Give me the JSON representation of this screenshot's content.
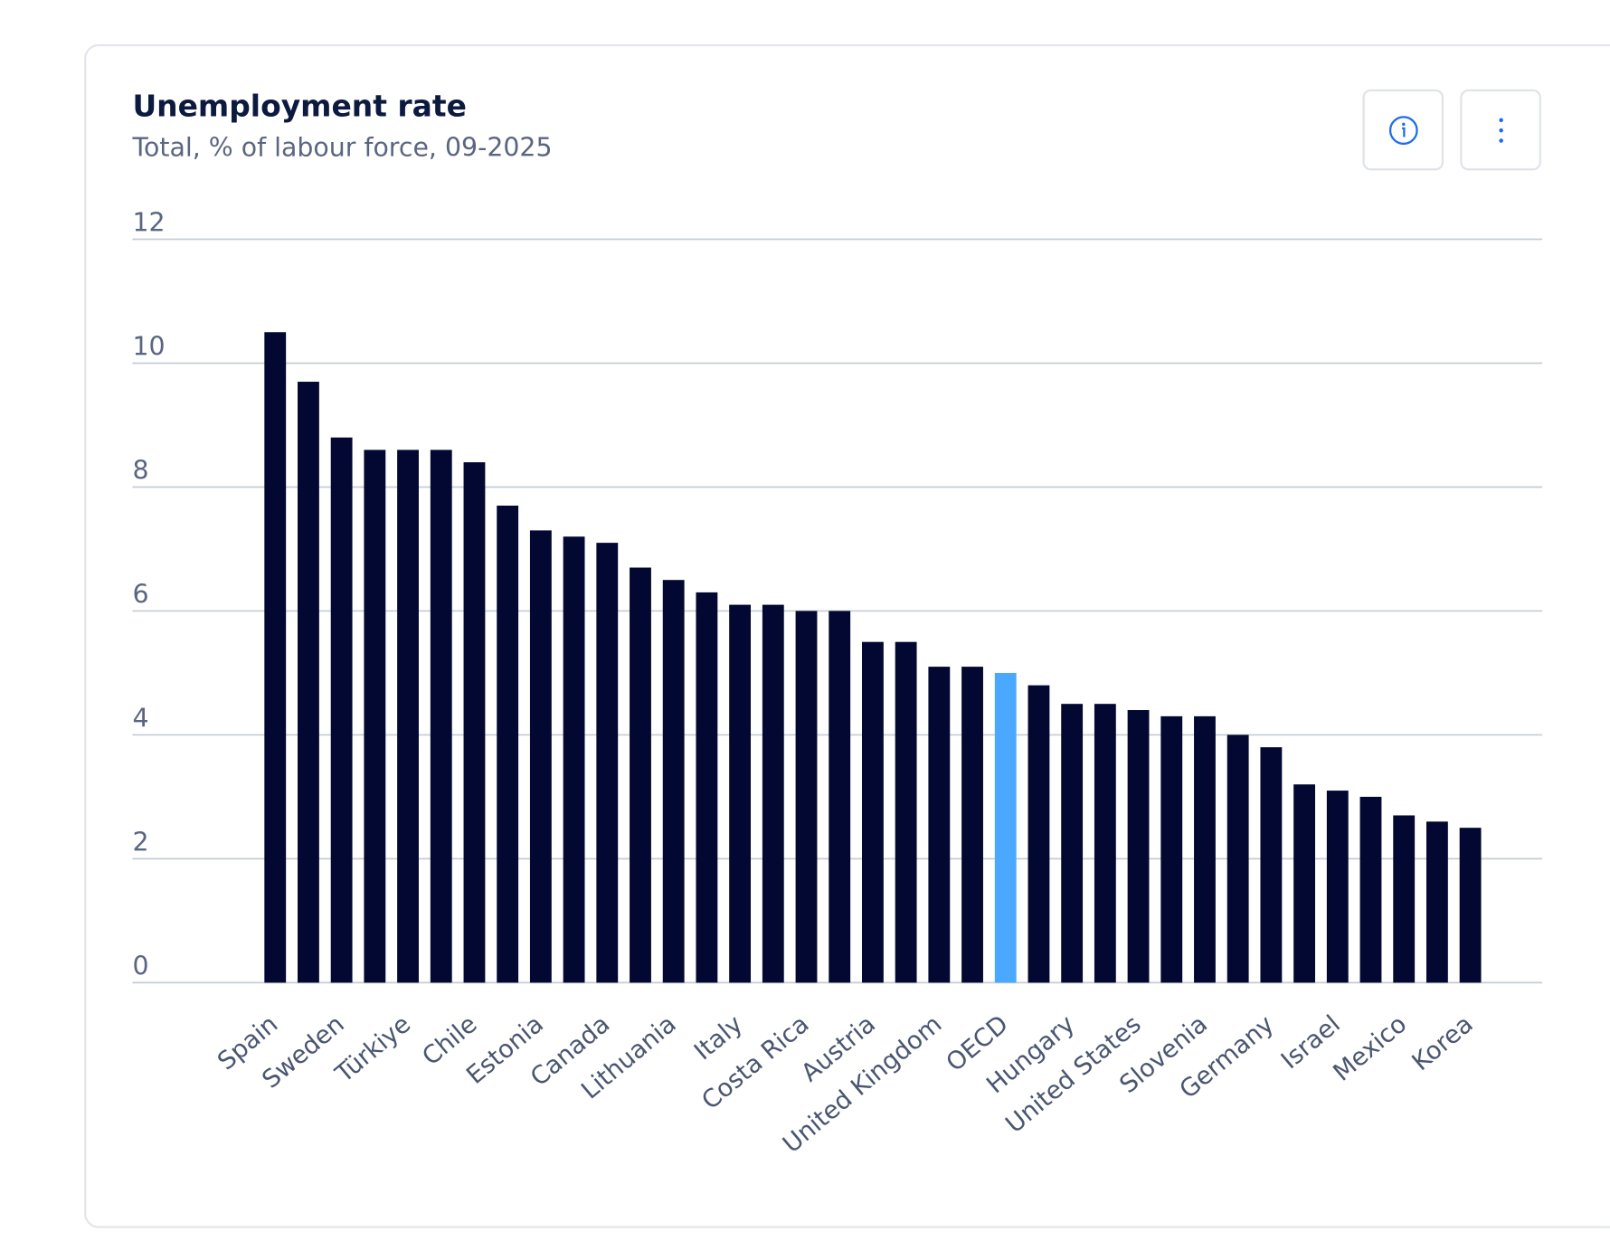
{
  "header": {
    "title": "Unemployment rate",
    "subtitle": "Total, % of labour force, 09-2025"
  },
  "buttons": {
    "info_icon": "info-circle-icon",
    "menu_icon": "more-vertical-icon"
  },
  "colors": {
    "bar": "#020831",
    "highlight": "#4aa8ff",
    "grid": "#c5ccd6",
    "accent": "#1f6bf0"
  },
  "chart_data": {
    "type": "bar",
    "title": "Unemployment rate",
    "subtitle": "Total, % of labour force, 09-2025",
    "xlabel": "",
    "ylabel": "",
    "ylim": [
      0,
      12
    ],
    "yticks": [
      0,
      2,
      4,
      6,
      8,
      10,
      12
    ],
    "grid": true,
    "highlight": "OECD",
    "categories": [
      "Spain",
      "",
      "Sweden",
      "",
      "Türkiye",
      "",
      "Chile",
      "",
      "Estonia",
      "",
      "Canada",
      "",
      "Lithuania",
      "",
      "Italy",
      "",
      "Costa Rica",
      "",
      "Austria",
      "",
      "United Kingdom",
      "",
      "OECD",
      "",
      "Hungary",
      "",
      "United States",
      "",
      "Slovenia",
      "",
      "Germany",
      "",
      "Israel",
      "",
      "Mexico",
      "",
      "Korea"
    ],
    "values": [
      10.5,
      9.7,
      8.8,
      8.6,
      8.6,
      8.6,
      8.4,
      7.7,
      7.3,
      7.2,
      7.1,
      6.7,
      6.5,
      6.3,
      6.1,
      6.1,
      6.0,
      6.0,
      5.5,
      5.5,
      5.1,
      5.1,
      5.0,
      4.8,
      4.5,
      4.5,
      4.4,
      4.3,
      4.3,
      4.0,
      3.8,
      3.2,
      3.1,
      3.0,
      2.7,
      2.6,
      2.5
    ]
  }
}
